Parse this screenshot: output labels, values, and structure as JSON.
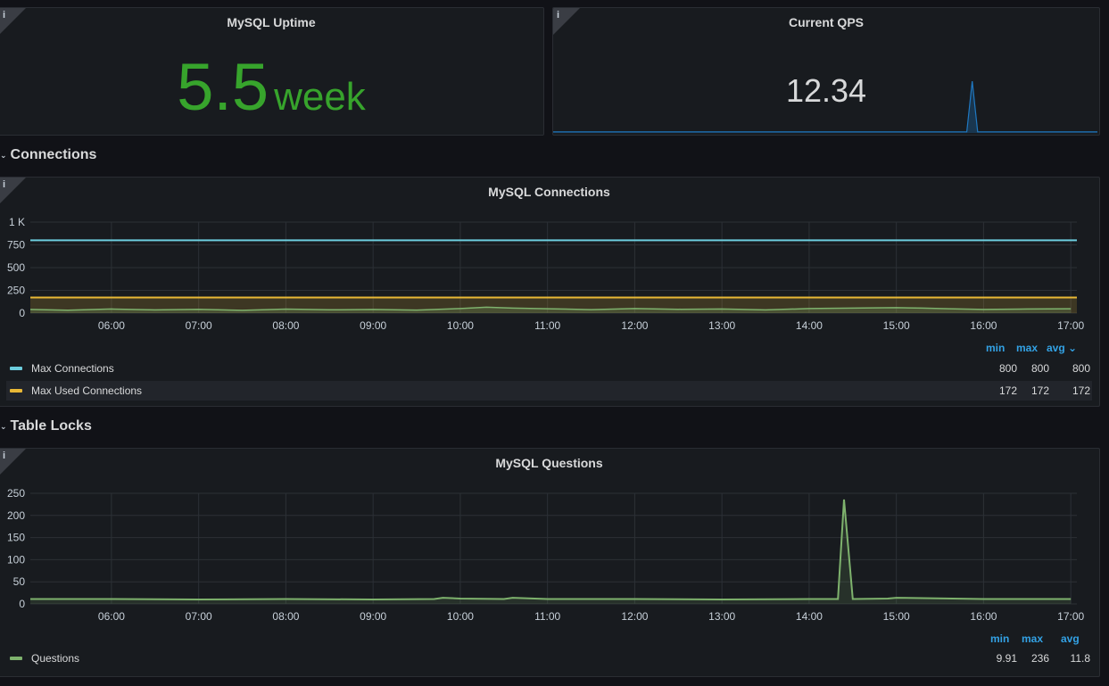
{
  "colors": {
    "green": "#37a42c",
    "blue": "#6ccddd",
    "yellow": "#e9b836",
    "series_green": "#7eb26d",
    "qps_blue": "#1f78c1",
    "legend_header": "#33a2e5"
  },
  "uptime_panel": {
    "title": "MySQL Uptime",
    "value": "5.5",
    "unit": "week",
    "info": "i"
  },
  "qps_panel": {
    "title": "Current QPS",
    "value": "12.34",
    "info": "i"
  },
  "rows": {
    "connections": {
      "label": "Connections",
      "chevron": "⌄"
    },
    "table_locks": {
      "label": "Table Locks",
      "chevron": "⌄"
    }
  },
  "connections_panel": {
    "title": "MySQL Connections",
    "info": "i",
    "legend_headers": {
      "min": "min",
      "max": "max",
      "avg": "avg ⌄"
    },
    "legend": [
      {
        "name": "Max Connections",
        "min": "800",
        "max": "800",
        "avg": "800"
      },
      {
        "name": "Max Used Connections",
        "min": "172",
        "max": "172",
        "avg": "172"
      }
    ]
  },
  "questions_panel": {
    "title": "MySQL Questions",
    "info": "i",
    "legend_headers": {
      "min": "min",
      "max": "max",
      "avg": "avg"
    },
    "legend": [
      {
        "name": "Questions",
        "min": "9.91",
        "max": "236",
        "avg": "11.8"
      }
    ]
  },
  "chart_data": [
    {
      "type": "line",
      "x_ticks": [
        "06:00",
        "07:00",
        "08:00",
        "09:00",
        "10:00",
        "11:00",
        "12:00",
        "13:00",
        "14:00",
        "15:00",
        "16:00",
        "17:00"
      ],
      "y_ticks": [
        "0",
        "250",
        "500",
        "750",
        "1 K"
      ],
      "ylim": [
        0,
        1000
      ],
      "xlim": [
        5.07,
        17.07
      ],
      "grid": true,
      "legend_position": "bottom",
      "series": [
        {
          "name": "Max Connections",
          "x": [
            5.07,
            17.07
          ],
          "y": [
            800,
            800
          ]
        },
        {
          "name": "Max Used Connections",
          "x": [
            5.07,
            17.07
          ],
          "y": [
            172,
            172
          ]
        },
        {
          "name": "",
          "x": [
            5.07,
            5.5,
            6.0,
            6.5,
            7.0,
            7.5,
            8.0,
            8.5,
            9.0,
            9.5,
            10.0,
            10.3,
            10.6,
            11.0,
            11.5,
            12.0,
            12.5,
            13.0,
            13.5,
            14.0,
            14.5,
            15.0,
            15.3,
            15.6,
            16.0,
            16.5,
            17.0
          ],
          "y": [
            40,
            32,
            45,
            35,
            42,
            30,
            44,
            36,
            40,
            33,
            50,
            65,
            55,
            48,
            38,
            50,
            42,
            45,
            35,
            50,
            55,
            60,
            55,
            48,
            40,
            45,
            48
          ]
        }
      ]
    },
    {
      "type": "line",
      "x_ticks": [
        "06:00",
        "07:00",
        "08:00",
        "09:00",
        "10:00",
        "11:00",
        "12:00",
        "13:00",
        "14:00",
        "15:00",
        "16:00",
        "17:00"
      ],
      "y_ticks": [
        "0",
        "50",
        "100",
        "150",
        "200",
        "250"
      ],
      "ylim": [
        0,
        250
      ],
      "xlim": [
        5.07,
        17.07
      ],
      "grid": true,
      "legend_position": "bottom",
      "series": [
        {
          "name": "Questions",
          "x": [
            5.07,
            6.0,
            7.0,
            8.0,
            9.0,
            9.7,
            9.8,
            10.0,
            10.5,
            10.6,
            11.0,
            12.0,
            13.0,
            14.0,
            14.33,
            14.4,
            14.5,
            14.9,
            15.0,
            16.0,
            17.0
          ],
          "y": [
            11,
            11,
            10,
            11,
            10,
            11,
            14,
            12,
            11,
            14,
            11,
            11,
            10,
            11,
            11,
            236,
            11,
            12,
            14,
            11,
            11
          ]
        }
      ]
    }
  ],
  "qps_sparkline": {
    "x": [
      0,
      0.5,
      0.76,
      0.77,
      0.78,
      0.79,
      1.0
    ],
    "y": [
      0.02,
      0.02,
      0.02,
      1.0,
      0.02,
      0.02,
      0.02
    ]
  }
}
